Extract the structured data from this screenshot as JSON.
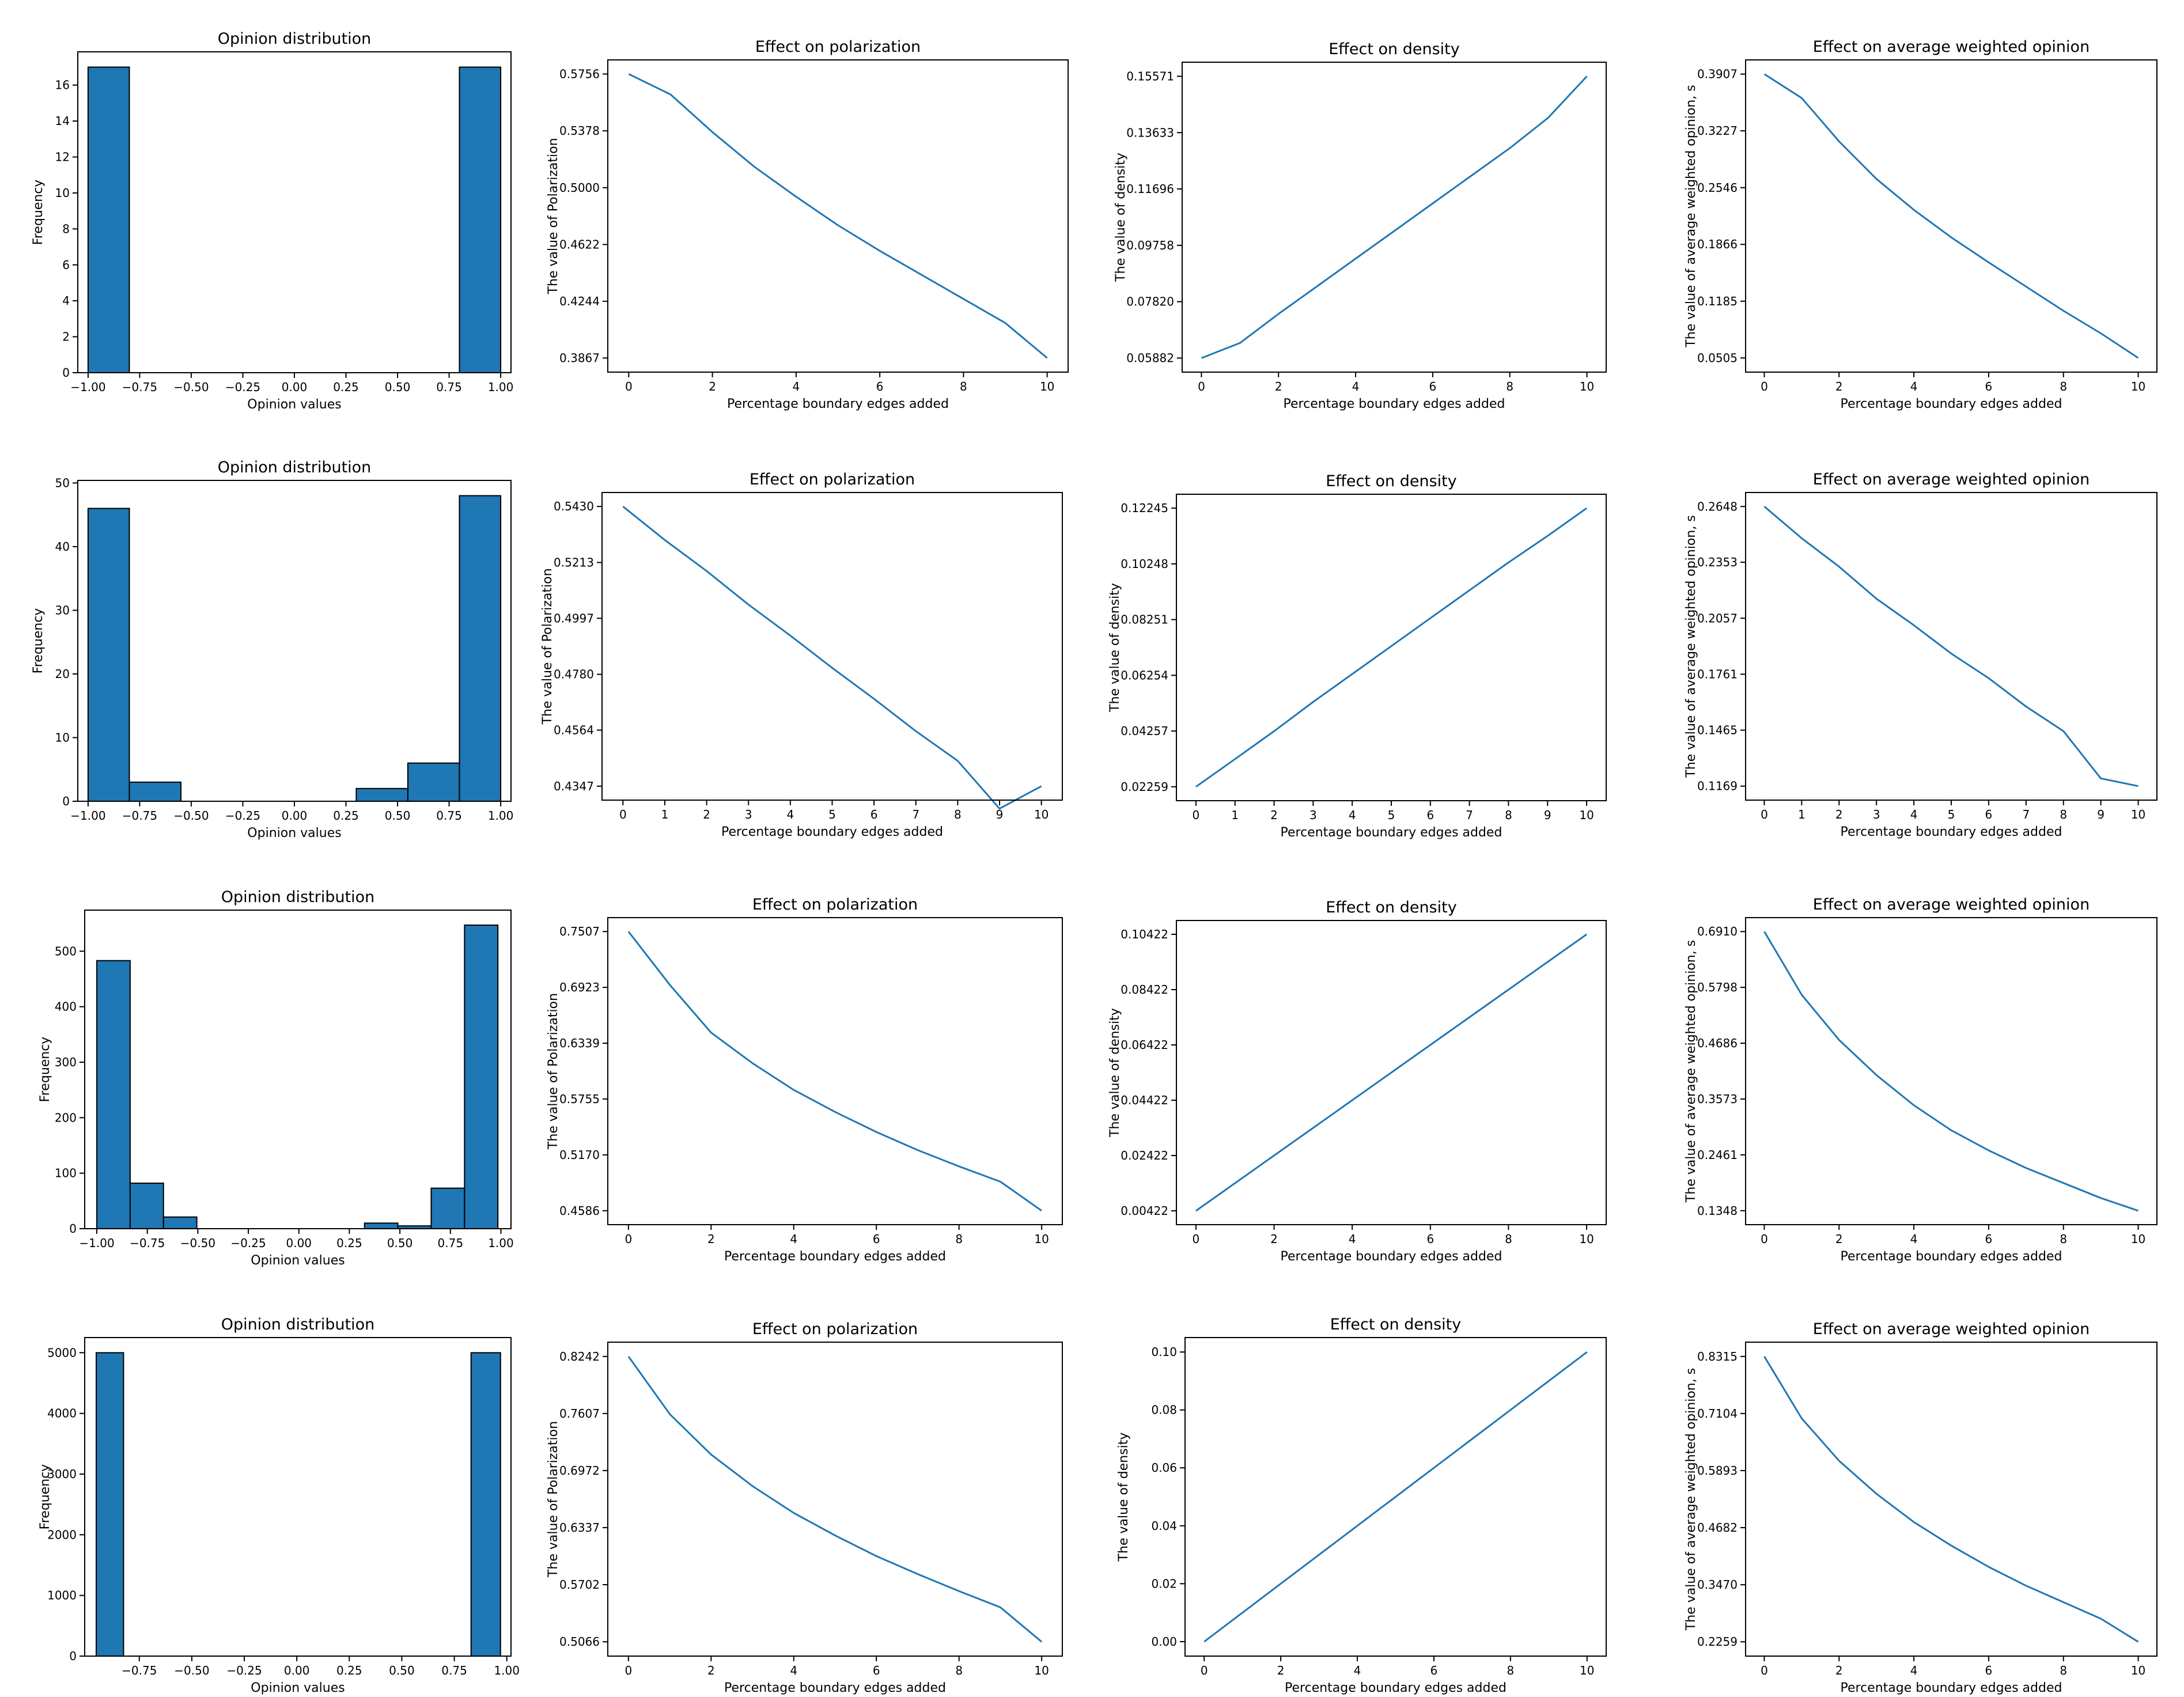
{
  "figure": {
    "colors": {
      "series": "#1f77b4",
      "bar_edge": "#000000",
      "axes": "#000000"
    }
  },
  "chart_data": [
    {
      "type": "bar",
      "title": "Opinion distribution",
      "xlabel": "Opinion values",
      "ylabel": "Frequency",
      "bins": [
        [
          -1.0,
          -0.8,
          17
        ],
        [
          0.8,
          1.0,
          17
        ]
      ],
      "xlim": [
        -1.05,
        1.05
      ],
      "ylim": [
        0,
        17.85
      ],
      "xticks": [
        -1.0,
        -0.75,
        -0.5,
        -0.25,
        0.0,
        0.25,
        0.5,
        0.75,
        1.0
      ],
      "xtick_labels": [
        "−1.00",
        "−0.75",
        "−0.50",
        "−0.25",
        "0.00",
        "0.25",
        "0.50",
        "0.75",
        "1.00"
      ],
      "yticks": [
        0,
        2,
        4,
        6,
        8,
        10,
        12,
        14,
        16
      ],
      "ytick_labels": [
        "0",
        "2",
        "4",
        "6",
        "8",
        "10",
        "12",
        "14",
        "16"
      ]
    },
    {
      "type": "line",
      "title": "Effect on polarization",
      "xlabel": "Percentage boundary edges added",
      "ylabel": "The value of Polarization",
      "x": [
        0,
        1,
        2,
        3,
        4,
        5,
        6,
        7,
        8,
        9,
        10
      ],
      "y": [
        0.5756,
        0.562,
        0.537,
        0.514,
        0.494,
        0.475,
        0.458,
        0.442,
        0.426,
        0.41,
        0.3867
      ],
      "xlim": [
        -0.5,
        10.5
      ],
      "ylim": [
        0.3773,
        0.585
      ],
      "xticks": [
        0,
        2,
        4,
        6,
        8,
        10
      ],
      "xtick_labels": [
        "0",
        "2",
        "4",
        "6",
        "8",
        "10"
      ],
      "yticks": [
        0.3867,
        0.4244,
        0.4622,
        0.5,
        0.5378,
        0.5756
      ],
      "ytick_labels": [
        "0.3867",
        "0.4244",
        "0.4622",
        "0.5000",
        "0.5378",
        "0.5756"
      ]
    },
    {
      "type": "line",
      "title": "Effect on density",
      "xlabel": "Percentage boundary edges added",
      "ylabel": "The value of density",
      "x": [
        0,
        1,
        2,
        3,
        4,
        5,
        6,
        7,
        8,
        9,
        10
      ],
      "y": [
        0.05882,
        0.064,
        0.074,
        0.0835,
        0.093,
        0.1025,
        0.112,
        0.1215,
        0.131,
        0.1415,
        0.15571
      ],
      "xlim": [
        -0.5,
        10.5
      ],
      "ylim": [
        0.05398,
        0.16055
      ],
      "xticks": [
        0,
        2,
        4,
        6,
        8,
        10
      ],
      "xtick_labels": [
        "0",
        "2",
        "4",
        "6",
        "8",
        "10"
      ],
      "yticks": [
        0.05882,
        0.0782,
        0.09758,
        0.11696,
        0.13633,
        0.15571
      ],
      "ytick_labels": [
        "0.05882",
        "0.07820",
        "0.09758",
        "0.11696",
        "0.13633",
        "0.15571"
      ]
    },
    {
      "type": "line",
      "title": "Effect on average weighted opinion",
      "xlabel": "Percentage boundary edges added",
      "ylabel": "The value of average weighted opinion, s",
      "x": [
        0,
        1,
        2,
        3,
        4,
        5,
        6,
        7,
        8,
        9,
        10
      ],
      "y": [
        0.3907,
        0.362,
        0.31,
        0.265,
        0.228,
        0.195,
        0.165,
        0.136,
        0.107,
        0.08,
        0.0505
      ],
      "xlim": [
        -0.5,
        10.5
      ],
      "ylim": [
        0.0335,
        0.4077
      ],
      "xticks": [
        0,
        2,
        4,
        6,
        8,
        10
      ],
      "xtick_labels": [
        "0",
        "2",
        "4",
        "6",
        "8",
        "10"
      ],
      "yticks": [
        0.0505,
        0.1185,
        0.1866,
        0.2546,
        0.3227,
        0.3907
      ],
      "ytick_labels": [
        "0.0505",
        "0.1185",
        "0.1866",
        "0.2546",
        "0.3227",
        "0.3907"
      ]
    },
    {
      "type": "bar",
      "title": "Opinion distribution",
      "xlabel": "Opinion values",
      "ylabel": "Frequency",
      "bins": [
        [
          -1.0,
          -0.8,
          46
        ],
        [
          -0.8,
          -0.55,
          3
        ],
        [
          0.3,
          0.55,
          2
        ],
        [
          0.55,
          0.8,
          6
        ],
        [
          0.8,
          1.0,
          48
        ]
      ],
      "xlim": [
        -1.05,
        1.05
      ],
      "ylim": [
        0,
        50.4
      ],
      "xticks": [
        -1.0,
        -0.75,
        -0.5,
        -0.25,
        0.0,
        0.25,
        0.5,
        0.75,
        1.0
      ],
      "xtick_labels": [
        "−1.00",
        "−0.75",
        "−0.50",
        "−0.25",
        "0.00",
        "0.25",
        "0.50",
        "0.75",
        "1.00"
      ],
      "yticks": [
        0,
        10,
        20,
        30,
        40,
        50
      ],
      "ytick_labels": [
        "0",
        "10",
        "20",
        "30",
        "40",
        "50"
      ]
    },
    {
      "type": "line",
      "title": "Effect on polarization",
      "xlabel": "Percentage boundary edges added",
      "ylabel": "The value of Polarization",
      "x": [
        0,
        1,
        2,
        3,
        4,
        5,
        6,
        7,
        8,
        9,
        10
      ],
      "y": [
        0.543,
        0.53,
        0.518,
        0.505,
        0.493,
        0.4805,
        0.4685,
        0.456,
        0.4445,
        0.426,
        0.4347
      ],
      "xlim": [
        -0.5,
        10.5
      ],
      "ylim": [
        0.4293,
        0.5484
      ],
      "xticks": [
        0,
        1,
        2,
        3,
        4,
        5,
        6,
        7,
        8,
        9,
        10
      ],
      "xtick_labels": [
        "0",
        "1",
        "2",
        "3",
        "4",
        "5",
        "6",
        "7",
        "8",
        "9",
        "10"
      ],
      "yticks": [
        0.4347,
        0.4564,
        0.478,
        0.4997,
        0.5213,
        0.543
      ],
      "ytick_labels": [
        "0.4347",
        "0.4564",
        "0.4780",
        "0.4997",
        "0.5213",
        "0.5430"
      ]
    },
    {
      "type": "line",
      "title": "Effect on density",
      "xlabel": "Percentage boundary edges added",
      "ylabel": "The value of density",
      "x": [
        0,
        1,
        2,
        3,
        4,
        5,
        6,
        7,
        8,
        9,
        10
      ],
      "y": [
        0.02259,
        0.0325,
        0.0425,
        0.053,
        0.063,
        0.073,
        0.083,
        0.093,
        0.103,
        0.1125,
        0.12245
      ],
      "xlim": [
        -0.5,
        10.5
      ],
      "ylim": [
        0.0176,
        0.12744
      ],
      "xticks": [
        0,
        1,
        2,
        3,
        4,
        5,
        6,
        7,
        8,
        9,
        10
      ],
      "xtick_labels": [
        "0",
        "1",
        "2",
        "3",
        "4",
        "5",
        "6",
        "7",
        "8",
        "9",
        "10"
      ],
      "yticks": [
        0.02259,
        0.04257,
        0.06254,
        0.08251,
        0.10248,
        0.12245
      ],
      "ytick_labels": [
        "0.02259",
        "0.04257",
        "0.06254",
        "0.08251",
        "0.10248",
        "0.12245"
      ]
    },
    {
      "type": "line",
      "title": "Effect on average weighted opinion",
      "xlabel": "Percentage boundary edges added",
      "ylabel": "The value of average weighted opinion, s",
      "x": [
        0,
        1,
        2,
        3,
        4,
        5,
        6,
        7,
        8,
        9,
        10
      ],
      "y": [
        0.2648,
        0.248,
        0.233,
        0.216,
        0.202,
        0.187,
        0.174,
        0.159,
        0.146,
        0.121,
        0.1169
      ],
      "xlim": [
        -0.5,
        10.5
      ],
      "ylim": [
        0.1095,
        0.2722
      ],
      "xticks": [
        0,
        1,
        2,
        3,
        4,
        5,
        6,
        7,
        8,
        9,
        10
      ],
      "xtick_labels": [
        "0",
        "1",
        "2",
        "3",
        "4",
        "5",
        "6",
        "7",
        "8",
        "9",
        "10"
      ],
      "yticks": [
        0.1169,
        0.1465,
        0.1761,
        0.2057,
        0.2353,
        0.2648
      ],
      "ytick_labels": [
        "0.1169",
        "0.1465",
        "0.1761",
        "0.2057",
        "0.2353",
        "0.2648"
      ]
    },
    {
      "type": "bar",
      "title": "Opinion distribution",
      "xlabel": "Opinion values",
      "ylabel": "Frequency",
      "bins": [
        [
          -1.0,
          -0.835,
          483
        ],
        [
          -0.835,
          -0.67,
          82
        ],
        [
          -0.67,
          -0.505,
          21
        ],
        [
          0.325,
          0.49,
          10
        ],
        [
          0.49,
          0.655,
          5
        ],
        [
          0.655,
          0.82,
          73
        ],
        [
          0.82,
          0.985,
          547
        ]
      ],
      "xlim": [
        -1.06,
        1.05
      ],
      "ylim": [
        0,
        574
      ],
      "xticks": [
        -1.0,
        -0.75,
        -0.5,
        -0.25,
        0.0,
        0.25,
        0.5,
        0.75,
        1.0
      ],
      "xtick_labels": [
        "−1.00",
        "−0.75",
        "−0.50",
        "−0.25",
        "0.00",
        "0.25",
        "0.50",
        "0.75",
        "1.00"
      ],
      "yticks": [
        0,
        100,
        200,
        300,
        400,
        500
      ],
      "ytick_labels": [
        "0",
        "100",
        "200",
        "300",
        "400",
        "500"
      ]
    },
    {
      "type": "line",
      "title": "Effect on polarization",
      "xlabel": "Percentage boundary edges added",
      "ylabel": "The value of Polarization",
      "x": [
        0,
        1,
        2,
        3,
        4,
        5,
        6,
        7,
        8,
        9,
        10
      ],
      "y": [
        0.7507,
        0.695,
        0.645,
        0.613,
        0.585,
        0.562,
        0.541,
        0.522,
        0.505,
        0.489,
        0.4586
      ],
      "xlim": [
        -0.5,
        10.5
      ],
      "ylim": [
        0.444,
        0.7653
      ],
      "xticks": [
        0,
        2,
        4,
        6,
        8,
        10
      ],
      "xtick_labels": [
        "0",
        "2",
        "4",
        "6",
        "8",
        "10"
      ],
      "yticks": [
        0.4586,
        0.517,
        0.5755,
        0.6339,
        0.6923,
        0.7507
      ],
      "ytick_labels": [
        "0.4586",
        "0.5170",
        "0.5755",
        "0.6339",
        "0.6923",
        "0.7507"
      ]
    },
    {
      "type": "line",
      "title": "Effect on density",
      "xlabel": "Percentage boundary edges added",
      "ylabel": "The value of density",
      "x": [
        0,
        1,
        2,
        3,
        4,
        5,
        6,
        7,
        8,
        9,
        10
      ],
      "y": [
        0.00422,
        0.01422,
        0.02422,
        0.03422,
        0.04422,
        0.05422,
        0.06422,
        0.07422,
        0.08422,
        0.09422,
        0.10422
      ],
      "xlim": [
        -0.5,
        10.5
      ],
      "ylim": [
        -0.00078,
        0.10922
      ],
      "xticks": [
        0,
        2,
        4,
        6,
        8,
        10
      ],
      "xtick_labels": [
        "0",
        "2",
        "4",
        "6",
        "8",
        "10"
      ],
      "yticks": [
        0.00422,
        0.02422,
        0.04422,
        0.06422,
        0.08422,
        0.10422
      ],
      "ytick_labels": [
        "0.00422",
        "0.02422",
        "0.04422",
        "0.06422",
        "0.08422",
        "0.10422"
      ]
    },
    {
      "type": "line",
      "title": "Effect on average weighted opinion",
      "xlabel": "Percentage boundary edges added",
      "ylabel": "The value of average weighted opinion, s",
      "x": [
        0,
        1,
        2,
        3,
        4,
        5,
        6,
        7,
        8,
        9,
        10
      ],
      "y": [
        0.691,
        0.565,
        0.475,
        0.405,
        0.345,
        0.295,
        0.255,
        0.22,
        0.19,
        0.16,
        0.1348
      ],
      "xlim": [
        -0.5,
        10.5
      ],
      "ylim": [
        0.107,
        0.7188
      ],
      "xticks": [
        0,
        2,
        4,
        6,
        8,
        10
      ],
      "xtick_labels": [
        "0",
        "2",
        "4",
        "6",
        "8",
        "10"
      ],
      "yticks": [
        0.1348,
        0.2461,
        0.3573,
        0.4686,
        0.5798,
        0.691
      ],
      "ytick_labels": [
        "0.1348",
        "0.2461",
        "0.3573",
        "0.4686",
        "0.5798",
        "0.6910"
      ]
    },
    {
      "type": "bar",
      "title": "Opinion distribution",
      "xlabel": "Opinion values",
      "ylabel": "Frequency",
      "bins": [
        [
          -0.955,
          -0.825,
          5000
        ],
        [
          0.83,
          0.97,
          5000
        ]
      ],
      "xlim": [
        -1.01,
        1.02
      ],
      "ylim": [
        0,
        5250
      ],
      "xticks": [
        -0.75,
        -0.5,
        -0.25,
        0.0,
        0.25,
        0.5,
        0.75,
        1.0
      ],
      "xtick_labels": [
        "−0.75",
        "−0.50",
        "−0.25",
        "0.00",
        "0.25",
        "0.50",
        "0.75",
        "1.00"
      ],
      "yticks": [
        0,
        1000,
        2000,
        3000,
        4000,
        5000
      ],
      "ytick_labels": [
        "0",
        "1000",
        "2000",
        "3000",
        "4000",
        "5000"
      ]
    },
    {
      "type": "line",
      "title": "Effect on polarization",
      "xlabel": "Percentage boundary edges added",
      "ylabel": "The value of Polarization",
      "x": [
        0,
        1,
        2,
        3,
        4,
        5,
        6,
        7,
        8,
        9,
        10
      ],
      "y": [
        0.8242,
        0.76,
        0.715,
        0.68,
        0.65,
        0.625,
        0.602,
        0.582,
        0.563,
        0.545,
        0.5066
      ],
      "xlim": [
        -0.5,
        10.5
      ],
      "ylim": [
        0.4907,
        0.8401
      ],
      "xticks": [
        0,
        2,
        4,
        6,
        8,
        10
      ],
      "xtick_labels": [
        "0",
        "2",
        "4",
        "6",
        "8",
        "10"
      ],
      "yticks": [
        0.5066,
        0.5702,
        0.6337,
        0.6972,
        0.7607,
        0.8242
      ],
      "ytick_labels": [
        "0.5066",
        "0.5702",
        "0.6337",
        "0.6972",
        "0.7607",
        "0.8242"
      ]
    },
    {
      "type": "line",
      "title": "Effect on density",
      "xlabel": "Percentage boundary edges added",
      "ylabel": "The value of density",
      "x": [
        0,
        1,
        2,
        3,
        4,
        5,
        6,
        7,
        8,
        9,
        10
      ],
      "y": [
        0.0,
        0.01,
        0.02,
        0.03,
        0.04,
        0.05,
        0.06,
        0.07,
        0.08,
        0.09,
        0.1
      ],
      "xlim": [
        -0.5,
        10.5
      ],
      "ylim": [
        -0.005,
        0.105
      ],
      "xticks": [
        0,
        2,
        4,
        6,
        8,
        10
      ],
      "xtick_labels": [
        "0",
        "2",
        "4",
        "6",
        "8",
        "10"
      ],
      "yticks": [
        0.0,
        0.02,
        0.04,
        0.06,
        0.08,
        0.1
      ],
      "ytick_labels": [
        "0.00",
        "0.02",
        "0.04",
        "0.06",
        "0.08",
        "0.10"
      ]
    },
    {
      "type": "line",
      "title": "Effect on average weighted opinion",
      "xlabel": "Percentage boundary edges added",
      "ylabel": "The value of average weighted opinion, s",
      "x": [
        0,
        1,
        2,
        3,
        4,
        5,
        6,
        7,
        8,
        9,
        10
      ],
      "y": [
        0.8315,
        0.7,
        0.61,
        0.54,
        0.48,
        0.43,
        0.385,
        0.345,
        0.31,
        0.275,
        0.2259
      ],
      "xlim": [
        -0.5,
        10.5
      ],
      "ylim": [
        0.1956,
        0.8618
      ],
      "xticks": [
        0,
        2,
        4,
        6,
        8,
        10
      ],
      "xtick_labels": [
        "0",
        "2",
        "4",
        "6",
        "8",
        "10"
      ],
      "yticks": [
        0.2259,
        0.347,
        0.4682,
        0.5893,
        0.7104,
        0.8315
      ],
      "ytick_labels": [
        "0.2259",
        "0.3470",
        "0.4682",
        "0.5893",
        "0.7104",
        "0.8315"
      ]
    }
  ]
}
